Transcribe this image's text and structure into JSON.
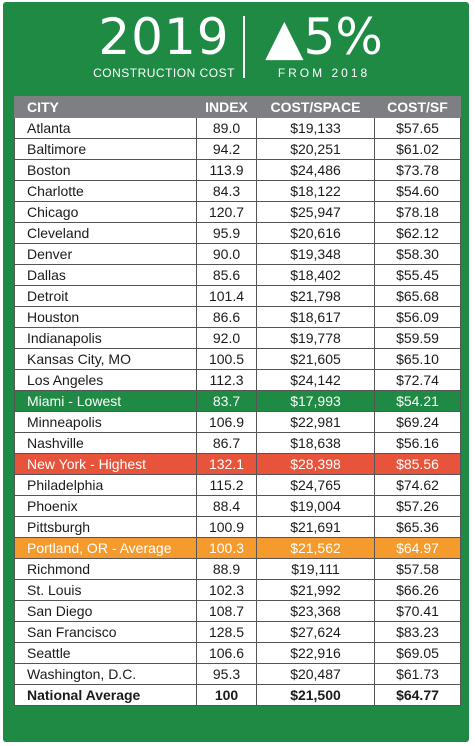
{
  "header": {
    "year": "2019",
    "year_subtitle": "CONSTRUCTION COST",
    "change": "▲5%",
    "change_subtitle": "FROM 2018"
  },
  "colors": {
    "background_green": "#1e8a43",
    "header_gray": "#7d7f82",
    "lowest_green": "#1e8a43",
    "highest_red": "#e8543b",
    "average_orange": "#f59b2e"
  },
  "chart_data": {
    "type": "table",
    "columns": [
      "CITY",
      "INDEX",
      "COST/SPACE",
      "COST/SF"
    ],
    "rows": [
      {
        "city": "Atlanta",
        "index": "89.0",
        "cost_space": "$19,133",
        "cost_sf": "$57.65"
      },
      {
        "city": "Baltimore",
        "index": "94.2",
        "cost_space": "$20,251",
        "cost_sf": "$61.02"
      },
      {
        "city": "Boston",
        "index": "113.9",
        "cost_space": "$24,486",
        "cost_sf": "$73.78"
      },
      {
        "city": "Charlotte",
        "index": "84.3",
        "cost_space": "$18,122",
        "cost_sf": "$54.60"
      },
      {
        "city": "Chicago",
        "index": "120.7",
        "cost_space": "$25,947",
        "cost_sf": "$78.18"
      },
      {
        "city": "Cleveland",
        "index": "95.9",
        "cost_space": "$20,616",
        "cost_sf": "$62.12"
      },
      {
        "city": "Denver",
        "index": "90.0",
        "cost_space": "$19,348",
        "cost_sf": "$58.30"
      },
      {
        "city": "Dallas",
        "index": "85.6",
        "cost_space": "$18,402",
        "cost_sf": "$55.45"
      },
      {
        "city": "Detroit",
        "index": "101.4",
        "cost_space": "$21,798",
        "cost_sf": "$65.68"
      },
      {
        "city": "Houston",
        "index": "86.6",
        "cost_space": "$18,617",
        "cost_sf": "$56.09"
      },
      {
        "city": "Indianapolis",
        "index": "92.0",
        "cost_space": "$19,778",
        "cost_sf": "$59.59"
      },
      {
        "city": "Kansas City, MO",
        "index": "100.5",
        "cost_space": "$21,605",
        "cost_sf": "$65.10"
      },
      {
        "city": "Los Angeles",
        "index": "112.3",
        "cost_space": "$24,142",
        "cost_sf": "$72.74"
      },
      {
        "city": "Miami - Lowest",
        "index": "83.7",
        "cost_space": "$17,993",
        "cost_sf": "$54.21",
        "highlight": "low"
      },
      {
        "city": "Minneapolis",
        "index": "106.9",
        "cost_space": "$22,981",
        "cost_sf": "$69.24"
      },
      {
        "city": "Nashville",
        "index": "86.7",
        "cost_space": "$18,638",
        "cost_sf": "$56.16"
      },
      {
        "city": "New York - Highest",
        "index": "132.1",
        "cost_space": "$28,398",
        "cost_sf": "$85.56",
        "highlight": "high"
      },
      {
        "city": "Philadelphia",
        "index": "115.2",
        "cost_space": "$24,765",
        "cost_sf": "$74.62"
      },
      {
        "city": "Phoenix",
        "index": "88.4",
        "cost_space": "$19,004",
        "cost_sf": "$57.26"
      },
      {
        "city": "Pittsburgh",
        "index": "100.9",
        "cost_space": "$21,691",
        "cost_sf": "$65.36"
      },
      {
        "city": "Portland, OR - Average",
        "index": "100.3",
        "cost_space": "$21,562",
        "cost_sf": "$64.97",
        "highlight": "avg"
      },
      {
        "city": "Richmond",
        "index": "88.9",
        "cost_space": "$19,111",
        "cost_sf": "$57.58"
      },
      {
        "city": "St. Louis",
        "index": "102.3",
        "cost_space": "$21,992",
        "cost_sf": "$66.26"
      },
      {
        "city": "San Diego",
        "index": "108.7",
        "cost_space": "$23,368",
        "cost_sf": "$70.41"
      },
      {
        "city": "San Francisco",
        "index": "128.5",
        "cost_space": "$27,624",
        "cost_sf": "$83.23"
      },
      {
        "city": "Seattle",
        "index": "106.6",
        "cost_space": "$22,916",
        "cost_sf": "$69.05"
      },
      {
        "city": "Washington, D.C.",
        "index": "95.3",
        "cost_space": "$20,487",
        "cost_sf": "$61.73"
      }
    ],
    "total": {
      "city": "National Average",
      "index": "100",
      "cost_space": "$21,500",
      "cost_sf": "$64.77"
    }
  }
}
